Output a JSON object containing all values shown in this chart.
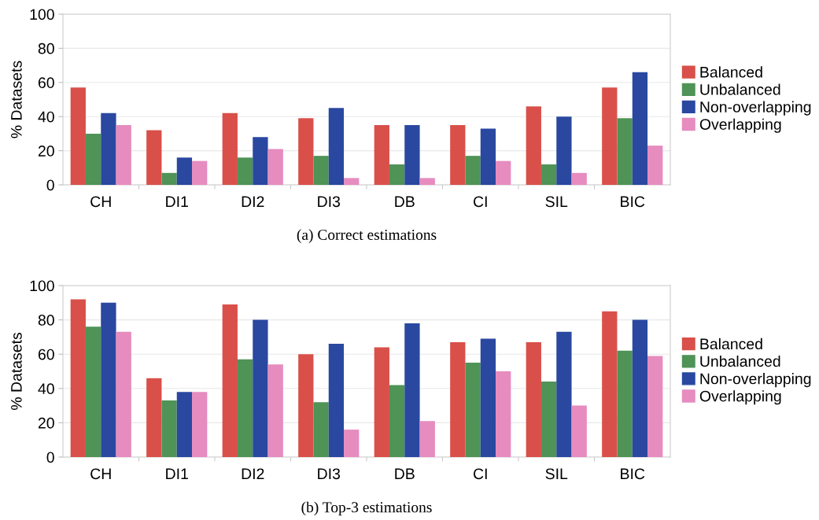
{
  "chart_data": [
    {
      "type": "bar",
      "title": "(a) Correct estimations",
      "ylabel": "% Datasets",
      "categories": [
        "CH",
        "DI1",
        "DI2",
        "DI3",
        "DB",
        "CI",
        "SIL",
        "BIC"
      ],
      "ylim": [
        0,
        100
      ],
      "yticks": [
        0,
        20,
        40,
        60,
        80,
        100
      ],
      "grid": "y",
      "legend": "right",
      "series": [
        {
          "name": "Balanced",
          "color": "#d9504a",
          "values": [
            57,
            32,
            42,
            39,
            35,
            35,
            46,
            57
          ]
        },
        {
          "name": "Unbalanced",
          "color": "#4f9357",
          "values": [
            30,
            7,
            16,
            17,
            12,
            17,
            12,
            39
          ]
        },
        {
          "name": "Non-overlapping",
          "color": "#2a48a0",
          "values": [
            42,
            16,
            28,
            45,
            35,
            33,
            40,
            66
          ]
        },
        {
          "name": "Overlapping",
          "color": "#e68cbf",
          "values": [
            35,
            14,
            21,
            4,
            4,
            14,
            7,
            23
          ]
        }
      ]
    },
    {
      "type": "bar",
      "title": "(b) Top-3 estimations",
      "ylabel": "% Datasets",
      "categories": [
        "CH",
        "DI1",
        "DI2",
        "DI3",
        "DB",
        "CI",
        "SIL",
        "BIC"
      ],
      "ylim": [
        0,
        100
      ],
      "yticks": [
        0,
        20,
        40,
        60,
        80,
        100
      ],
      "grid": "y",
      "legend": "right",
      "series": [
        {
          "name": "Balanced",
          "color": "#d9504a",
          "values": [
            92,
            46,
            89,
            60,
            64,
            67,
            67,
            85
          ]
        },
        {
          "name": "Unbalanced",
          "color": "#4f9357",
          "values": [
            76,
            33,
            57,
            32,
            42,
            55,
            44,
            62
          ]
        },
        {
          "name": "Non-overlapping",
          "color": "#2a48a0",
          "values": [
            90,
            38,
            80,
            66,
            78,
            69,
            73,
            80
          ]
        },
        {
          "name": "Overlapping",
          "color": "#e68cbf",
          "values": [
            73,
            38,
            54,
            16,
            21,
            50,
            30,
            59
          ]
        }
      ]
    }
  ]
}
